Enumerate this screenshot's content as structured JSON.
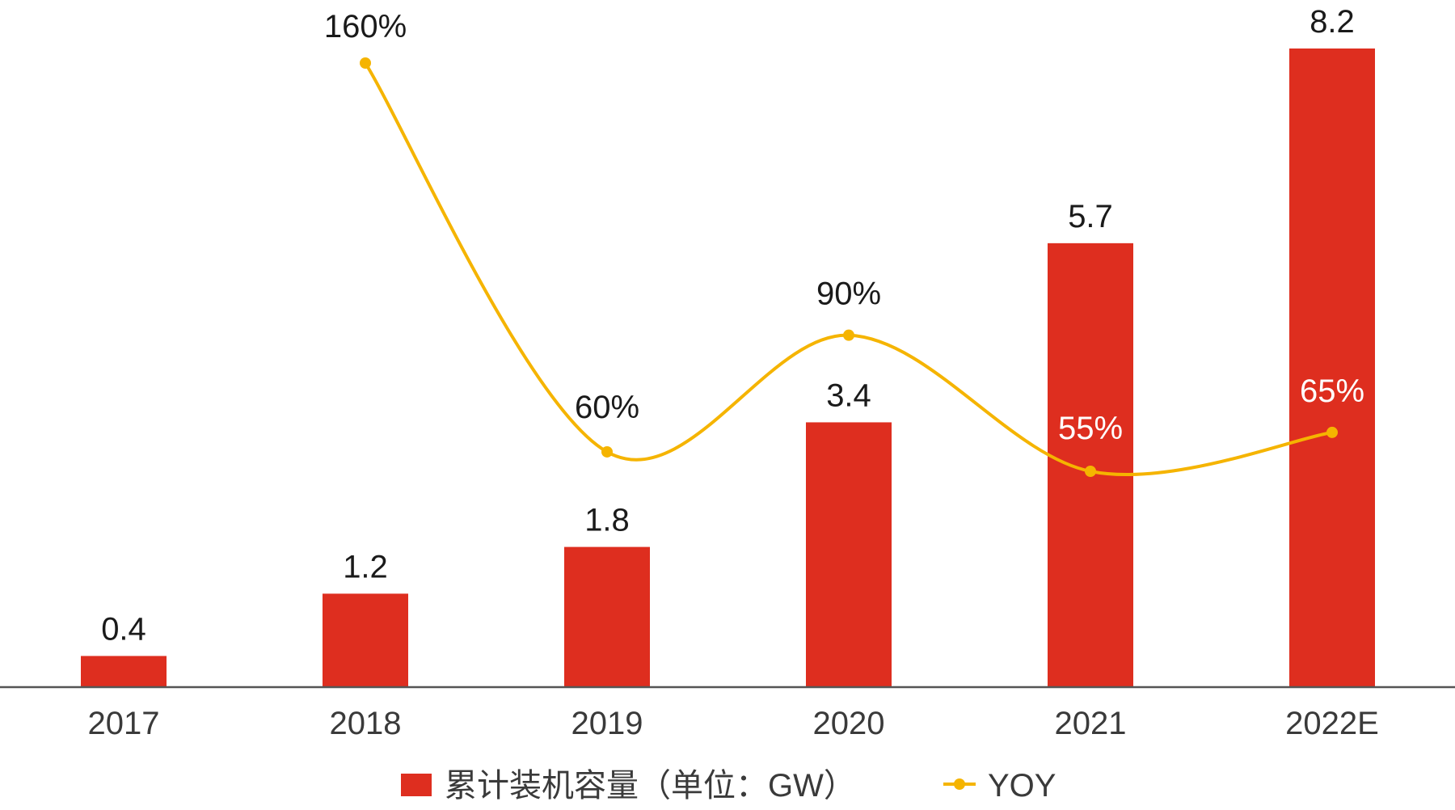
{
  "chart_data": {
    "type": "bar+line",
    "categories": [
      "2017",
      "2018",
      "2019",
      "2020",
      "2021",
      "2022E"
    ],
    "series": [
      {
        "name": "累计装机容量（单位：GW）",
        "type": "bar",
        "values": [
          0.4,
          1.2,
          1.8,
          3.4,
          5.7,
          8.2
        ],
        "labels": [
          "0.4",
          "1.2",
          "1.8",
          "3.4",
          "5.7",
          "8.2"
        ]
      },
      {
        "name": "YOY",
        "type": "line",
        "values": [
          null,
          160,
          60,
          90,
          55,
          65
        ],
        "labels": [
          "",
          "160%",
          "60%",
          "90%",
          "55%",
          "65%"
        ]
      }
    ],
    "bar_ylim": [
      0,
      8.2
    ],
    "line_ylim": [
      55,
      160
    ],
    "legend_position": "bottom-center",
    "grid": false,
    "colors": {
      "bar": "#DE2E1F",
      "line": "#F5B400",
      "axis": "#555555",
      "label_dark": "#1a1a1a",
      "label_light": "#ffffff"
    }
  }
}
